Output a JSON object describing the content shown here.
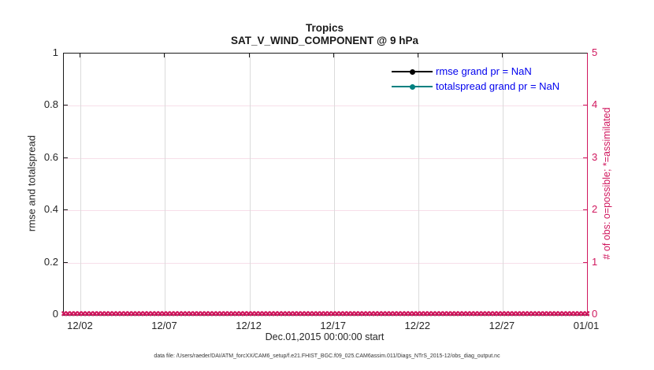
{
  "header": {
    "title": "Tropics",
    "subtitle": "SAT_V_WIND_COMPONENT @ 9 hPa"
  },
  "left_axis": {
    "label": "rmse and totalspread",
    "ticks": [
      "1",
      "0.8",
      "0.6",
      "0.4",
      "0.2",
      "0"
    ],
    "color": "#262626"
  },
  "right_axis": {
    "label": "# of obs: o=possible; *=assimilated",
    "ticks": [
      "5",
      "4",
      "3",
      "2",
      "1",
      "0"
    ],
    "color": "#D0175E"
  },
  "x_axis": {
    "label": "Dec.01,2015 00:00:00 start",
    "ticks": [
      {
        "label": "12/02",
        "pct": 3.23
      },
      {
        "label": "12/07",
        "pct": 19.35
      },
      {
        "label": "12/12",
        "pct": 35.48
      },
      {
        "label": "12/17",
        "pct": 51.61
      },
      {
        "label": "12/22",
        "pct": 67.74
      },
      {
        "label": "12/27",
        "pct": 83.87
      },
      {
        "label": "01/01",
        "pct": 100
      }
    ]
  },
  "legend": {
    "text_color": "#0000EE",
    "entries": [
      {
        "label": "rmse grand pr = NaN",
        "color": "#000000"
      },
      {
        "label": "totalspread grand pr = NaN",
        "color": "#008080"
      }
    ]
  },
  "band_marker": {
    "name": "x-marker",
    "glyph": "✖",
    "color": "#D0175E",
    "repeat": 150
  },
  "footer": {
    "text": "data file: /Users/raeder/DAI/ATM_forcXX/CAM6_setup/f.e21.FHIST_BGC.f09_025.CAM6assim.011/Diags_NTrS_2015-12/obs_diag_output.nc"
  },
  "chart_data": {
    "type": "line",
    "title": "Tropics",
    "subtitle": "SAT_V_WIND_COMPONENT @ 9 hPa",
    "xlabel": "Dec.01,2015 00:00:00 start",
    "x_range": [
      "2015-12-01 00:00",
      "2016-01-01 00:00"
    ],
    "x_tick_labels": [
      "12/02",
      "12/07",
      "12/12",
      "12/17",
      "12/22",
      "12/27",
      "01/01"
    ],
    "left_ylabel": "rmse and totalspread",
    "left_ylim": [
      0,
      1
    ],
    "left_yticks": [
      0,
      0.2,
      0.4,
      0.6,
      0.8,
      1
    ],
    "right_ylabel": "# of obs: o=possible; *=assimilated",
    "right_ylim": [
      0,
      5
    ],
    "right_yticks": [
      0,
      1,
      2,
      3,
      4,
      5
    ],
    "grid": true,
    "legend_position": "top-right-inside",
    "series": [
      {
        "name": "rmse",
        "axis": "left",
        "color": "#000000",
        "marker": "filled-circle",
        "grand_pr": "NaN",
        "values": "all NaN (no curve drawn)"
      },
      {
        "name": "totalspread",
        "axis": "left",
        "color": "#008080",
        "marker": "filled-circle",
        "grand_pr": "NaN",
        "values": "all NaN (no curve drawn)"
      },
      {
        "name": "obs possible (o)",
        "axis": "right",
        "color": "#D0175E",
        "marker": "o",
        "constant_value": 0,
        "n_points": 124
      },
      {
        "name": "obs assimilated (*)",
        "axis": "right",
        "color": "#D0175E",
        "marker": "*",
        "constant_value": 0,
        "n_points": 124
      }
    ]
  }
}
